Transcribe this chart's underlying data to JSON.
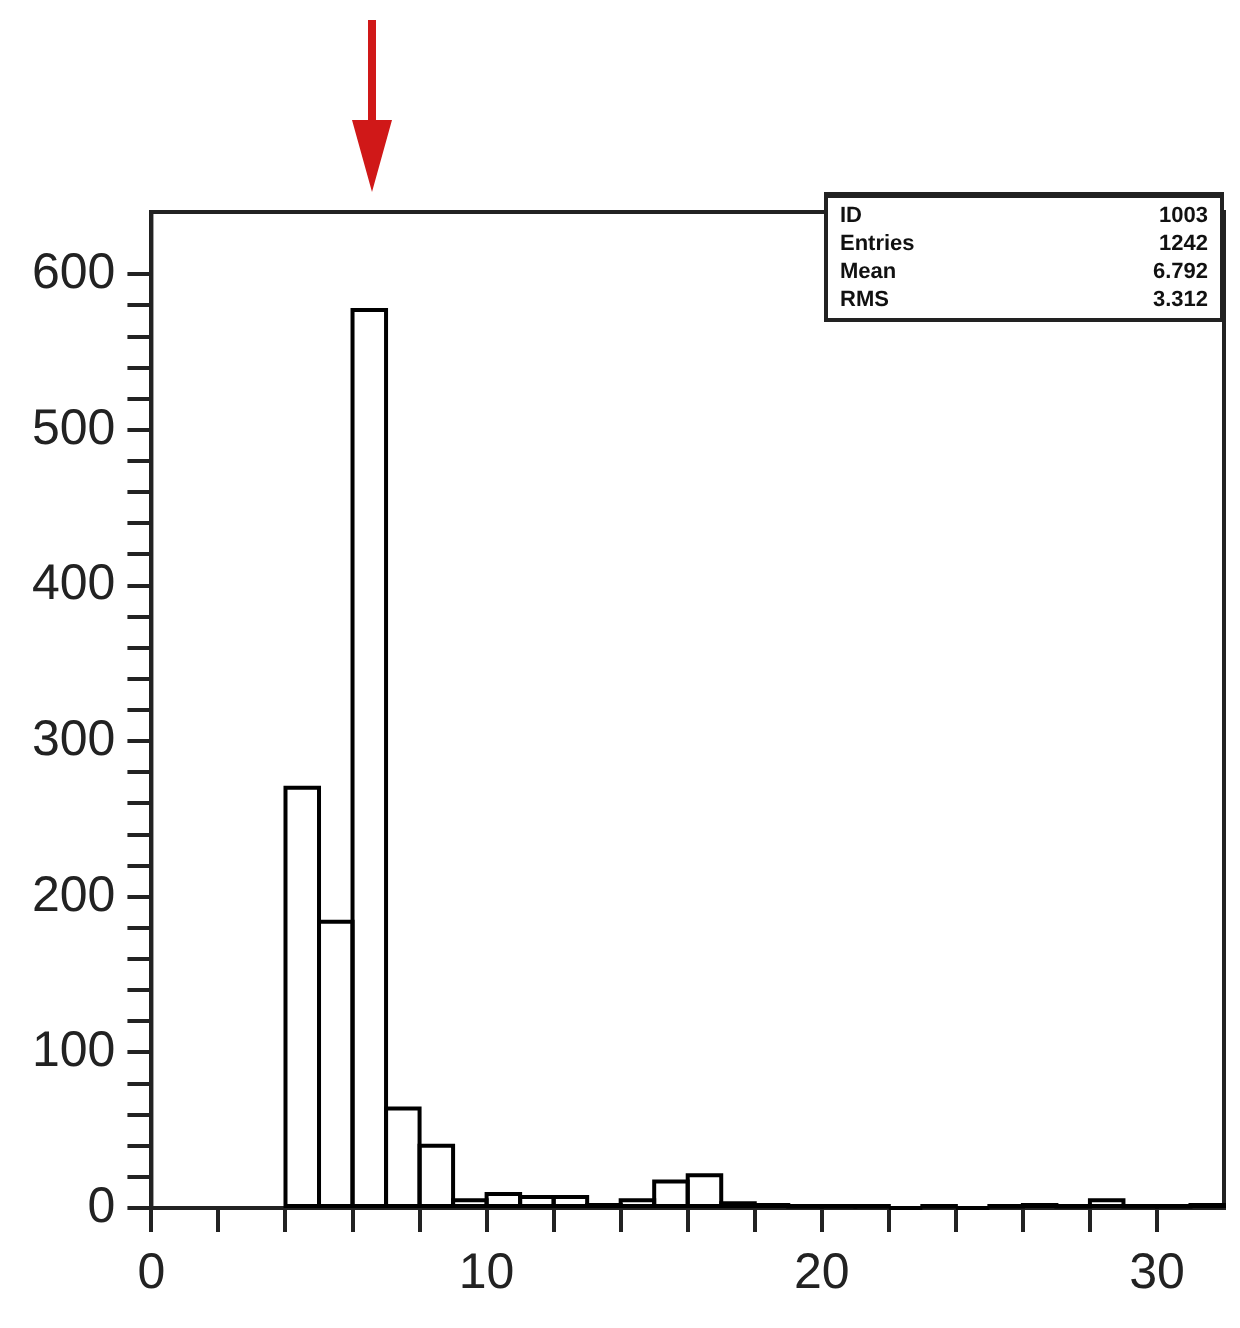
{
  "chart_data": {
    "type": "histogram",
    "bins": [
      4,
      5,
      6,
      7,
      8,
      9,
      10,
      11,
      12,
      13,
      14,
      15,
      16,
      17,
      18,
      19,
      20,
      21,
      22,
      23,
      24,
      25,
      26,
      27,
      28,
      29,
      30,
      31,
      32
    ],
    "values": [
      270,
      184,
      577,
      64,
      40,
      5,
      9,
      7,
      7,
      2,
      5,
      17,
      21,
      3,
      2,
      1,
      1,
      1,
      0,
      1,
      0,
      1,
      2,
      1,
      5,
      1,
      1,
      2
    ],
    "color": "#000000",
    "xlim": [
      0,
      32
    ],
    "xticks": [
      0,
      {
        "value": 2,
        "label": null
      },
      {
        "value": 4,
        "label": null
      },
      {
        "value": 6,
        "label": null
      },
      {
        "value": 8,
        "label": null
      },
      10,
      {
        "value": 12,
        "label": null
      },
      {
        "value": 14,
        "label": null
      },
      {
        "value": 16,
        "label": null
      },
      {
        "value": 18,
        "label": null
      },
      20,
      {
        "value": 22,
        "label": null
      },
      {
        "value": 24,
        "label": null
      },
      {
        "value": 26,
        "label": null
      },
      {
        "value": 28,
        "label": null
      },
      30
    ],
    "ylim": [
      0,
      640
    ],
    "yticks": [
      0,
      {
        "value": 20,
        "label": null
      },
      {
        "value": 40,
        "label": null
      },
      {
        "value": 60,
        "label": null
      },
      {
        "value": 80,
        "label": null
      },
      100,
      {
        "value": 120,
        "label": null
      },
      {
        "value": 140,
        "label": null
      },
      {
        "value": 160,
        "label": null
      },
      {
        "value": 180,
        "label": null
      },
      200,
      {
        "value": 220,
        "label": null
      },
      {
        "value": 240,
        "label": null
      },
      {
        "value": 260,
        "label": null
      },
      {
        "value": 280,
        "label": null
      },
      300,
      {
        "value": 320,
        "label": null
      },
      {
        "value": 340,
        "label": null
      },
      {
        "value": 360,
        "label": null
      },
      {
        "value": 380,
        "label": null
      },
      400,
      {
        "value": 420,
        "label": null
      },
      {
        "value": 440,
        "label": null
      },
      {
        "value": 460,
        "label": null
      },
      {
        "value": 480,
        "label": null
      },
      500,
      {
        "value": 520,
        "label": null
      },
      {
        "value": 540,
        "label": null
      },
      {
        "value": 560,
        "label": null
      },
      {
        "value": 580,
        "label": null
      },
      600
    ],
    "annotations": [
      "ID",
      "1003",
      "Entries",
      "1242",
      "Mean",
      "6.792",
      "RMS",
      "3.312"
    ]
  }
}
